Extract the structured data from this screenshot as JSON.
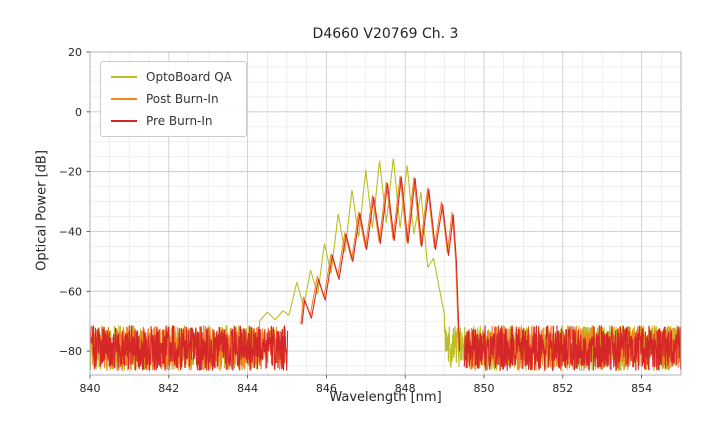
{
  "chart_data": {
    "type": "line",
    "title": "D4660 V20769 Ch. 3",
    "xlabel": "Wavelength [nm]",
    "ylabel": "Optical Power [dB]",
    "xlim": [
      840,
      855
    ],
    "ylim": [
      -88,
      20
    ],
    "xticks": [
      840,
      842,
      844,
      846,
      848,
      850,
      852,
      854
    ],
    "yticks": [
      20,
      0,
      -20,
      -40,
      -60,
      -80
    ],
    "x_minor_step": 0.5,
    "y_minor_step": 5,
    "grid": {
      "major_color": "#cccccc",
      "minor_color": "#e9e9e9",
      "spine_color": "#b0b0b0"
    },
    "legend": {
      "position": "upper-left"
    },
    "noise_floor": {
      "mean_db": -79,
      "range_db": [
        -86.5,
        -71.5
      ]
    },
    "series": [
      {
        "name": "OptoBoard QA",
        "color": "#bcbd22",
        "seed": 7,
        "noise_segments": [
          [
            840,
            855
          ]
        ],
        "envelope": [
          [
            844.3,
            -70
          ],
          [
            844.5,
            -67
          ],
          [
            844.7,
            -69.5
          ],
          [
            844.9,
            -66.5
          ],
          [
            845.05,
            -68
          ],
          [
            845.25,
            -57
          ],
          [
            845.42,
            -65
          ],
          [
            845.6,
            -53
          ],
          [
            845.78,
            -61
          ],
          [
            845.95,
            -44
          ],
          [
            846.12,
            -54
          ],
          [
            846.3,
            -34
          ],
          [
            846.47,
            -47
          ],
          [
            846.65,
            -26
          ],
          [
            846.82,
            -42
          ],
          [
            847.0,
            -19.5
          ],
          [
            847.17,
            -39
          ],
          [
            847.35,
            -16.2
          ],
          [
            847.52,
            -37
          ],
          [
            847.7,
            -15.3
          ],
          [
            847.87,
            -39
          ],
          [
            848.05,
            -17.8
          ],
          [
            848.22,
            -41
          ],
          [
            848.4,
            -27
          ],
          [
            848.57,
            -52
          ],
          [
            848.72,
            -49
          ],
          [
            848.88,
            -60
          ],
          [
            849.0,
            -68
          ]
        ]
      },
      {
        "name": "Post Burn-In",
        "color": "#f28522",
        "seed": 13,
        "noise_segments": [
          [
            840,
            845.0
          ],
          [
            849.52,
            855
          ]
        ],
        "envelope": [
          [
            845.35,
            -71
          ],
          [
            845.42,
            -62
          ],
          [
            845.59,
            -68
          ],
          [
            845.77,
            -55
          ],
          [
            845.94,
            -62
          ],
          [
            846.12,
            -47.5
          ],
          [
            846.29,
            -55
          ],
          [
            846.47,
            -40.5
          ],
          [
            846.64,
            -49.5
          ],
          [
            846.82,
            -33.5
          ],
          [
            846.99,
            -45.5
          ],
          [
            847.17,
            -28
          ],
          [
            847.34,
            -43.5
          ],
          [
            847.52,
            -23.6
          ],
          [
            847.69,
            -42.5
          ],
          [
            847.87,
            -21.5
          ],
          [
            848.04,
            -43.5
          ],
          [
            848.22,
            -22
          ],
          [
            848.39,
            -44.5
          ],
          [
            848.57,
            -25.4
          ],
          [
            848.74,
            -45.5
          ],
          [
            848.92,
            -30.2
          ],
          [
            849.07,
            -47
          ],
          [
            849.19,
            -33.6
          ],
          [
            849.28,
            -49
          ],
          [
            849.36,
            -79
          ]
        ]
      },
      {
        "name": "Pre Burn-In",
        "color": "#d62728",
        "seed": 29,
        "noise_segments": [
          [
            840,
            845.02
          ],
          [
            849.5,
            855
          ]
        ],
        "envelope": [
          [
            845.38,
            -71
          ],
          [
            845.45,
            -63
          ],
          [
            845.62,
            -69
          ],
          [
            845.8,
            -56
          ],
          [
            845.97,
            -63
          ],
          [
            846.15,
            -48
          ],
          [
            846.32,
            -56
          ],
          [
            846.5,
            -41
          ],
          [
            846.67,
            -50
          ],
          [
            846.85,
            -34
          ],
          [
            847.02,
            -46
          ],
          [
            847.2,
            -28.5
          ],
          [
            847.37,
            -44
          ],
          [
            847.55,
            -24
          ],
          [
            847.72,
            -43
          ],
          [
            847.9,
            -21.8
          ],
          [
            848.07,
            -44
          ],
          [
            848.25,
            -22.3
          ],
          [
            848.42,
            -45
          ],
          [
            848.6,
            -26
          ],
          [
            848.77,
            -46
          ],
          [
            848.95,
            -31
          ],
          [
            849.1,
            -48
          ],
          [
            849.22,
            -34.5
          ],
          [
            849.3,
            -50
          ],
          [
            849.38,
            -80
          ]
        ]
      }
    ]
  }
}
